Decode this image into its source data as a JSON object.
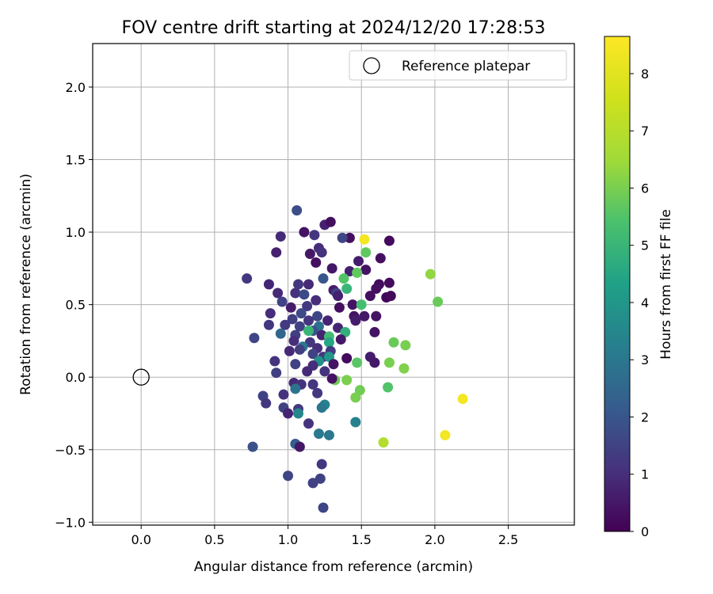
{
  "chart_data": {
    "type": "scatter",
    "title": "FOV centre drift starting at 2024/12/20 17:28:53",
    "xlabel": "Angular distance from reference (arcmin)",
    "ylabel": "Rotation from reference (arcmin)",
    "colorbar_label": "Hours from first FF file",
    "xlim": [
      -0.33,
      2.95
    ],
    "ylim": [
      -1.02,
      2.3
    ],
    "clim": [
      0,
      8.65
    ],
    "xticks": [
      "0.0",
      "0.5",
      "1.0",
      "1.5",
      "2.0",
      "2.5"
    ],
    "xtick_values": [
      0,
      0.5,
      1.0,
      1.5,
      2.0,
      2.5
    ],
    "yticks": [
      "2.0",
      "1.5",
      "1.0",
      "0.5",
      "0.0",
      "−0.5",
      "−1.0"
    ],
    "ytick_values": [
      2.0,
      1.5,
      1.0,
      0.5,
      0.0,
      -0.5,
      -1.0
    ],
    "cticks": [
      "0",
      "1",
      "2",
      "3",
      "4",
      "5",
      "6",
      "7",
      "8"
    ],
    "ctick_values": [
      0,
      1,
      2,
      3,
      4,
      5,
      6,
      7,
      8
    ],
    "colormap": "viridis",
    "grid": true,
    "legend_position": "top-right",
    "legend": [
      {
        "label": "Reference platepar",
        "marker": "open-circle"
      }
    ],
    "reference_point": {
      "x": 0.0,
      "y": 0.0
    },
    "points": [
      [
        1.06,
        1.15,
        1.8
      ],
      [
        1.25,
        1.05,
        0.7
      ],
      [
        1.29,
        1.07,
        0.3
      ],
      [
        1.11,
        1.0,
        0.4
      ],
      [
        1.18,
        0.98,
        1.2
      ],
      [
        1.42,
        0.96,
        0.3
      ],
      [
        1.37,
        0.96,
        1.6
      ],
      [
        0.95,
        0.97,
        0.9
      ],
      [
        1.52,
        0.95,
        8.4
      ],
      [
        1.69,
        0.94,
        0.2
      ],
      [
        1.21,
        0.89,
        1.0
      ],
      [
        1.23,
        0.86,
        1.1
      ],
      [
        0.92,
        0.86,
        0.7
      ],
      [
        1.53,
        0.86,
        5.7
      ],
      [
        1.15,
        0.85,
        0.5
      ],
      [
        1.63,
        0.82,
        0.3
      ],
      [
        1.48,
        0.8,
        0.6
      ],
      [
        1.19,
        0.79,
        0.3
      ],
      [
        1.3,
        0.75,
        0.5
      ],
      [
        1.42,
        0.73,
        0.7
      ],
      [
        1.53,
        0.74,
        0.4
      ],
      [
        1.47,
        0.72,
        5.7
      ],
      [
        1.97,
        0.71,
        6.3
      ],
      [
        0.72,
        0.68,
        1.2
      ],
      [
        1.24,
        0.68,
        2.0
      ],
      [
        1.38,
        0.68,
        5.5
      ],
      [
        1.62,
        0.64,
        0.2
      ],
      [
        1.69,
        0.65,
        0.2
      ],
      [
        1.07,
        0.64,
        1.2
      ],
      [
        1.14,
        0.64,
        0.9
      ],
      [
        0.87,
        0.64,
        0.8
      ],
      [
        1.31,
        0.6,
        0.6
      ],
      [
        1.4,
        0.61,
        5.0
      ],
      [
        1.6,
        0.61,
        0.3
      ],
      [
        1.05,
        0.58,
        1.1
      ],
      [
        1.33,
        0.58,
        1.5
      ],
      [
        0.93,
        0.58,
        0.9
      ],
      [
        1.11,
        0.57,
        1.7
      ],
      [
        1.34,
        0.56,
        0.7
      ],
      [
        1.56,
        0.56,
        0.3
      ],
      [
        1.67,
        0.55,
        0.1
      ],
      [
        1.7,
        0.56,
        0.2
      ],
      [
        1.19,
        0.53,
        1.0
      ],
      [
        0.96,
        0.52,
        1.5
      ],
      [
        2.02,
        0.52,
        5.8
      ],
      [
        1.13,
        0.49,
        1.3
      ],
      [
        1.02,
        0.48,
        0.6
      ],
      [
        1.35,
        0.48,
        0.3
      ],
      [
        1.44,
        0.5,
        0.4
      ],
      [
        1.5,
        0.5,
        5.3
      ],
      [
        1.09,
        0.44,
        1.7
      ],
      [
        0.88,
        0.44,
        1.0
      ],
      [
        1.2,
        0.42,
        1.6
      ],
      [
        1.45,
        0.42,
        0.4
      ],
      [
        1.52,
        0.42,
        0.5
      ],
      [
        1.6,
        0.42,
        0.4
      ],
      [
        1.03,
        0.4,
        1.4
      ],
      [
        1.14,
        0.39,
        1.2
      ],
      [
        1.27,
        0.39,
        0.8
      ],
      [
        1.46,
        0.39,
        0.6
      ],
      [
        0.98,
        0.36,
        1.3
      ],
      [
        0.87,
        0.36,
        1.2
      ],
      [
        1.08,
        0.35,
        1.5
      ],
      [
        1.21,
        0.35,
        2.8
      ],
      [
        1.34,
        0.34,
        0.8
      ],
      [
        1.17,
        0.32,
        1.9
      ],
      [
        1.14,
        0.32,
        5.0
      ],
      [
        1.39,
        0.31,
        4.8
      ],
      [
        1.59,
        0.31,
        0.4
      ],
      [
        0.95,
        0.3,
        2.5
      ],
      [
        1.05,
        0.29,
        1.4
      ],
      [
        1.23,
        0.29,
        0.8
      ],
      [
        1.28,
        0.28,
        5.2
      ],
      [
        1.36,
        0.26,
        0.5
      ],
      [
        0.77,
        0.27,
        1.6
      ],
      [
        1.04,
        0.25,
        1.0
      ],
      [
        1.15,
        0.24,
        1.2
      ],
      [
        1.28,
        0.24,
        4.5
      ],
      [
        1.72,
        0.24,
        5.8
      ],
      [
        1.8,
        0.22,
        6.0
      ],
      [
        1.1,
        0.21,
        3.0
      ],
      [
        1.2,
        0.2,
        1.0
      ],
      [
        1.08,
        0.19,
        1.4
      ],
      [
        1.29,
        0.18,
        1.3
      ],
      [
        1.01,
        0.18,
        0.9
      ],
      [
        1.17,
        0.16,
        1.5
      ],
      [
        1.24,
        0.14,
        1.2
      ],
      [
        1.28,
        0.14,
        4.0
      ],
      [
        1.4,
        0.13,
        0.2
      ],
      [
        1.56,
        0.14,
        0.6
      ],
      [
        1.21,
        0.11,
        3.8
      ],
      [
        1.47,
        0.1,
        5.6
      ],
      [
        1.59,
        0.1,
        0.5
      ],
      [
        1.69,
        0.1,
        6.0
      ],
      [
        0.91,
        0.11,
        1.1
      ],
      [
        1.05,
        0.09,
        1.5
      ],
      [
        1.17,
        0.08,
        1.0
      ],
      [
        1.31,
        0.09,
        0.4
      ],
      [
        1.79,
        0.06,
        6.1
      ],
      [
        0.92,
        0.03,
        1.4
      ],
      [
        1.13,
        0.04,
        0.9
      ],
      [
        1.25,
        0.04,
        1.1
      ],
      [
        1.32,
        -0.02,
        5.9
      ],
      [
        1.4,
        -0.02,
        6.0
      ],
      [
        1.3,
        -0.01,
        0.4
      ],
      [
        1.04,
        -0.04,
        0.9
      ],
      [
        1.09,
        -0.05,
        1.1
      ],
      [
        1.17,
        -0.05,
        1.2
      ],
      [
        1.05,
        -0.08,
        2.9
      ],
      [
        1.49,
        -0.09,
        5.9
      ],
      [
        1.68,
        -0.07,
        5.5
      ],
      [
        1.2,
        -0.11,
        1.2
      ],
      [
        0.97,
        -0.12,
        1.1
      ],
      [
        0.83,
        -0.13,
        1.5
      ],
      [
        1.46,
        -0.14,
        6.0
      ],
      [
        2.19,
        -0.15,
        8.4
      ],
      [
        0.85,
        -0.18,
        1.2
      ],
      [
        1.25,
        -0.19,
        3.3
      ],
      [
        1.23,
        -0.21,
        3.0
      ],
      [
        0.97,
        -0.21,
        1.5
      ],
      [
        1.07,
        -0.22,
        1.3
      ],
      [
        1.0,
        -0.25,
        0.8
      ],
      [
        1.07,
        -0.25,
        3.5
      ],
      [
        1.46,
        -0.31,
        3.3
      ],
      [
        1.14,
        -0.32,
        1.1
      ],
      [
        1.21,
        -0.39,
        3.1
      ],
      [
        1.28,
        -0.4,
        3.0
      ],
      [
        2.07,
        -0.4,
        8.4
      ],
      [
        1.65,
        -0.45,
        6.9
      ],
      [
        1.05,
        -0.46,
        2.2
      ],
      [
        1.08,
        -0.48,
        0.5
      ],
      [
        0.76,
        -0.48,
        1.9
      ],
      [
        1.23,
        -0.6,
        1.2
      ],
      [
        1.0,
        -0.68,
        1.6
      ],
      [
        1.22,
        -0.7,
        1.5
      ],
      [
        1.17,
        -0.73,
        1.5
      ],
      [
        1.24,
        -0.9,
        1.6
      ]
    ]
  }
}
